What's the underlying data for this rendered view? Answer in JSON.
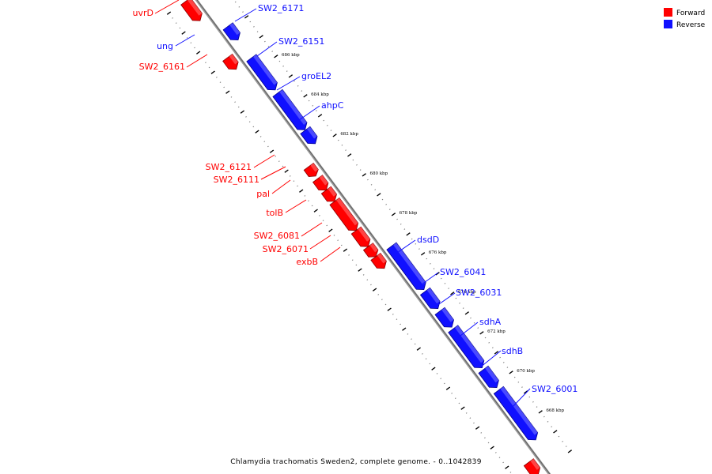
{
  "legend": {
    "forward": {
      "label": "Forward",
      "color": "#ff0000"
    },
    "reverse": {
      "label": "Reverse",
      "color": "#0000ff"
    }
  },
  "caption": "Chlamydia trachomatis Sweden2, complete genome. - 0..1042839",
  "colors": {
    "forward": "#ff0000",
    "forward_light": "#ff7a7a",
    "forward_dark": "#8a0000",
    "reverse": "#1010ff",
    "reverse_light": "#7a7aff",
    "reverse_dark": "#00008a",
    "backbone": "#9a9a9a"
  },
  "scale": {
    "bp_start": 666000,
    "bp_end": 690000,
    "tick_labels": [
      {
        "bp": 686000,
        "label": "686 kbp"
      },
      {
        "bp": 684000,
        "label": "684 kbp"
      },
      {
        "bp": 682000,
        "label": "682 kbp"
      },
      {
        "bp": 680000,
        "label": "680 kbp"
      },
      {
        "bp": 678000,
        "label": "678 kbp"
      },
      {
        "bp": 676000,
        "label": "676 kbp"
      },
      {
        "bp": 674000,
        "label": "674 kbp"
      },
      {
        "bp": 672000,
        "label": "672 kbp"
      },
      {
        "bp": 670000,
        "label": "670 kbp"
      },
      {
        "bp": 668000,
        "label": "668 kbp"
      }
    ]
  },
  "genes": [
    {
      "name": "uvrD",
      "strand": "forward",
      "from": 689980,
      "to": 689000
    },
    {
      "name": "SW2_6171",
      "strand": "reverse",
      "from": 688140,
      "to": 687450
    },
    {
      "name": "ung",
      "strand": "reverse",
      "from": null,
      "to": null
    },
    {
      "name": "SW2_6161",
      "strand": "forward",
      "from": 687130,
      "to": 686540
    },
    {
      "name": "SW2_6151",
      "strand": "reverse",
      "from": 686540,
      "to": 684920
    },
    {
      "name": "groEL2",
      "strand": "reverse",
      "from": 684760,
      "to": 682900
    },
    {
      "name": "ahpC",
      "strand": "reverse",
      "from": 682880,
      "to": 682200
    },
    {
      "name": "SW2_6121",
      "strand": "forward",
      "from": 681610,
      "to": 681130
    },
    {
      "name": "SW2_6111",
      "strand": "forward",
      "from": 681000,
      "to": 680420
    },
    {
      "name": "pal",
      "strand": "forward",
      "from": 680420,
      "to": 679850
    },
    {
      "name": "tolB",
      "strand": "forward",
      "from": 679850,
      "to": 678380
    },
    {
      "name": "SW2_6081",
      "strand": "forward",
      "from": 678380,
      "to": 677560
    },
    {
      "name": "SW2_6071",
      "strand": "forward",
      "from": 677560,
      "to": 677050
    },
    {
      "name": "exbB",
      "strand": "forward",
      "from": 677050,
      "to": 676460
    },
    {
      "name": "dsdD",
      "strand": "reverse",
      "from": 677010,
      "to": 674810
    },
    {
      "name": "SW2_6041",
      "strand": "reverse",
      "from": 674720,
      "to": 673850
    },
    {
      "name": "SW2_6031",
      "strand": "reverse",
      "from": 673720,
      "to": 672910
    },
    {
      "name": "sdhA",
      "strand": "reverse",
      "from": 672820,
      "to": 670850
    },
    {
      "name": "sdhB",
      "strand": "reverse",
      "from": 670760,
      "to": 669850
    },
    {
      "name": "SW2_6001",
      "strand": "reverse",
      "from": 669720,
      "to": 667200
    }
  ],
  "extra_feature": {
    "strand": "forward",
    "from": 666640,
    "to": 666000
  }
}
